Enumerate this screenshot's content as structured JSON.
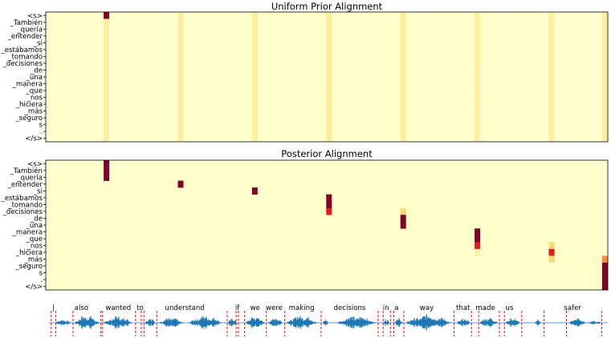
{
  "tokens": [
    "<s>",
    "_También",
    "_quería",
    "_entender",
    "_si",
    "_estábamos",
    "_tomando",
    "_decisiones",
    "_de",
    "_una",
    "_manera",
    "_que",
    "_nos",
    "_hiciera",
    "_más",
    "_seguro",
    "s",
    ".",
    "</s>"
  ],
  "colors": {
    "background": "#ffffcc",
    "light": "#ffeda0",
    "mid": "#fed976",
    "orange": "#fd8d3c",
    "red": "#e31a1c",
    "dark": "#800026",
    "waveform": "#1f77b4",
    "boundary": "#ff0000"
  },
  "chart_data": [
    {
      "type": "heatmap",
      "title": "Uniform Prior Alignment",
      "y_tick_labels": [
        "<s>",
        "_También",
        "_quería",
        "_entender",
        "_si",
        "_estábamos",
        "_tomando",
        "_decisiones",
        "_de",
        "_una",
        "_manera",
        "_que",
        "_nos",
        "_hiciera",
        "_más",
        "_seguro",
        "s",
        ".",
        "</s>"
      ],
      "x_range": [
        0,
        1
      ],
      "columns": [
        {
          "x": 0.108,
          "row_values": [
            [
              0,
              "dark"
            ],
            [
              1,
              "light"
            ],
            [
              2,
              "light"
            ],
            [
              3,
              "light"
            ],
            [
              4,
              "light"
            ],
            [
              5,
              "light"
            ],
            [
              6,
              "light"
            ],
            [
              7,
              "light"
            ],
            [
              8,
              "light"
            ],
            [
              9,
              "light"
            ],
            [
              10,
              "light"
            ],
            [
              11,
              "light"
            ],
            [
              12,
              "light"
            ],
            [
              13,
              "light"
            ],
            [
              14,
              "light"
            ],
            [
              15,
              "light"
            ],
            [
              16,
              "light"
            ],
            [
              17,
              "light"
            ],
            [
              18,
              "light"
            ]
          ]
        },
        {
          "x": 0.24,
          "row_values": [
            [
              0,
              "light"
            ],
            [
              1,
              "light"
            ],
            [
              2,
              "light"
            ],
            [
              3,
              "light"
            ],
            [
              4,
              "light"
            ],
            [
              5,
              "light"
            ],
            [
              6,
              "light"
            ],
            [
              7,
              "light"
            ],
            [
              8,
              "light"
            ],
            [
              9,
              "light"
            ],
            [
              10,
              "light"
            ],
            [
              11,
              "light"
            ],
            [
              12,
              "light"
            ],
            [
              13,
              "light"
            ],
            [
              14,
              "light"
            ],
            [
              15,
              "light"
            ],
            [
              16,
              "light"
            ],
            [
              17,
              "light"
            ],
            [
              18,
              "light"
            ]
          ]
        },
        {
          "x": 0.372,
          "row_values": [
            [
              0,
              "light"
            ],
            [
              1,
              "light"
            ],
            [
              2,
              "light"
            ],
            [
              3,
              "light"
            ],
            [
              4,
              "light"
            ],
            [
              5,
              "light"
            ],
            [
              6,
              "light"
            ],
            [
              7,
              "light"
            ],
            [
              8,
              "light"
            ],
            [
              9,
              "light"
            ],
            [
              10,
              "light"
            ],
            [
              11,
              "light"
            ],
            [
              12,
              "light"
            ],
            [
              13,
              "light"
            ],
            [
              14,
              "light"
            ],
            [
              15,
              "light"
            ],
            [
              16,
              "light"
            ],
            [
              17,
              "light"
            ],
            [
              18,
              "light"
            ]
          ]
        },
        {
          "x": 0.504,
          "row_values": [
            [
              0,
              "light"
            ],
            [
              1,
              "light"
            ],
            [
              2,
              "light"
            ],
            [
              3,
              "light"
            ],
            [
              4,
              "light"
            ],
            [
              5,
              "light"
            ],
            [
              6,
              "light"
            ],
            [
              7,
              "light"
            ],
            [
              8,
              "light"
            ],
            [
              9,
              "light"
            ],
            [
              10,
              "light"
            ],
            [
              11,
              "light"
            ],
            [
              12,
              "light"
            ],
            [
              13,
              "light"
            ],
            [
              14,
              "light"
            ],
            [
              15,
              "light"
            ],
            [
              16,
              "light"
            ],
            [
              17,
              "light"
            ],
            [
              18,
              "light"
            ]
          ]
        },
        {
          "x": 0.636,
          "row_values": [
            [
              0,
              "light"
            ],
            [
              1,
              "light"
            ],
            [
              2,
              "light"
            ],
            [
              3,
              "light"
            ],
            [
              4,
              "light"
            ],
            [
              5,
              "light"
            ],
            [
              6,
              "light"
            ],
            [
              7,
              "light"
            ],
            [
              8,
              "light"
            ],
            [
              9,
              "light"
            ],
            [
              10,
              "light"
            ],
            [
              11,
              "light"
            ],
            [
              12,
              "light"
            ],
            [
              13,
              "light"
            ],
            [
              14,
              "light"
            ],
            [
              15,
              "light"
            ],
            [
              16,
              "light"
            ],
            [
              17,
              "light"
            ],
            [
              18,
              "light"
            ]
          ]
        },
        {
          "x": 0.768,
          "row_values": [
            [
              0,
              "light"
            ],
            [
              1,
              "light"
            ],
            [
              2,
              "light"
            ],
            [
              3,
              "light"
            ],
            [
              4,
              "light"
            ],
            [
              5,
              "light"
            ],
            [
              6,
              "light"
            ],
            [
              7,
              "light"
            ],
            [
              8,
              "light"
            ],
            [
              9,
              "light"
            ],
            [
              10,
              "light"
            ],
            [
              11,
              "light"
            ],
            [
              12,
              "light"
            ],
            [
              13,
              "light"
            ],
            [
              14,
              "light"
            ],
            [
              15,
              "light"
            ],
            [
              16,
              "light"
            ],
            [
              17,
              "light"
            ],
            [
              18,
              "light"
            ]
          ]
        },
        {
          "x": 0.9,
          "row_values": [
            [
              0,
              "light"
            ],
            [
              1,
              "light"
            ],
            [
              2,
              "light"
            ],
            [
              3,
              "light"
            ],
            [
              4,
              "light"
            ],
            [
              5,
              "light"
            ],
            [
              6,
              "light"
            ],
            [
              7,
              "light"
            ],
            [
              8,
              "light"
            ],
            [
              9,
              "light"
            ],
            [
              10,
              "light"
            ],
            [
              11,
              "light"
            ],
            [
              12,
              "light"
            ],
            [
              13,
              "light"
            ],
            [
              14,
              "light"
            ],
            [
              15,
              "light"
            ],
            [
              16,
              "light"
            ],
            [
              17,
              "light"
            ],
            [
              18,
              "light"
            ]
          ]
        },
        {
          "x": 0.996,
          "row_values": [
            [
              0,
              "light"
            ],
            [
              1,
              "light"
            ],
            [
              2,
              "light"
            ],
            [
              3,
              "light"
            ],
            [
              4,
              "light"
            ],
            [
              5,
              "light"
            ],
            [
              6,
              "light"
            ],
            [
              7,
              "light"
            ],
            [
              8,
              "light"
            ],
            [
              9,
              "light"
            ],
            [
              10,
              "light"
            ],
            [
              11,
              "light"
            ],
            [
              12,
              "light"
            ],
            [
              13,
              "light"
            ],
            [
              14,
              "light"
            ],
            [
              15,
              "light"
            ],
            [
              16,
              "light"
            ],
            [
              17,
              "light"
            ],
            [
              18,
              "light"
            ]
          ]
        }
      ]
    },
    {
      "type": "heatmap",
      "title": "Posterior Alignment",
      "y_tick_labels": [
        "<s>",
        "_También",
        "_quería",
        "_entender",
        "_si",
        "_estábamos",
        "_tomando",
        "_decisiones",
        "_de",
        "_una",
        "_manera",
        "_que",
        "_nos",
        "_hiciera",
        "_más",
        "_seguro",
        "s",
        ".",
        "</s>"
      ],
      "x_range": [
        0,
        1
      ],
      "columns": [
        {
          "x": 0.108,
          "row_values": [
            [
              0,
              "dark"
            ],
            [
              1,
              "dark"
            ],
            [
              2,
              "dark"
            ]
          ]
        },
        {
          "x": 0.24,
          "row_values": [
            [
              3,
              "dark"
            ]
          ]
        },
        {
          "x": 0.372,
          "row_values": [
            [
              4,
              "dark"
            ]
          ]
        },
        {
          "x": 0.504,
          "row_values": [
            [
              5,
              "dark"
            ],
            [
              6,
              "dark"
            ],
            [
              7,
              "red"
            ]
          ]
        },
        {
          "x": 0.636,
          "row_values": [
            [
              7,
              "mid"
            ],
            [
              8,
              "dark"
            ],
            [
              9,
              "dark"
            ]
          ]
        },
        {
          "x": 0.768,
          "row_values": [
            [
              10,
              "dark"
            ],
            [
              11,
              "dark"
            ],
            [
              12,
              "red"
            ],
            [
              13,
              "light"
            ]
          ]
        },
        {
          "x": 0.9,
          "row_values": [
            [
              12,
              "mid"
            ],
            [
              13,
              "red"
            ],
            [
              14,
              "mid"
            ]
          ]
        },
        {
          "x": 0.996,
          "row_values": [
            [
              14,
              "orange"
            ],
            [
              15,
              "dark"
            ],
            [
              16,
              "dark"
            ],
            [
              17,
              "dark"
            ],
            [
              18,
              "dark"
            ]
          ]
        }
      ]
    },
    {
      "type": "line",
      "subtype": "waveform",
      "words": [
        {
          "text": "|",
          "x": 0.008
        },
        {
          "text": "also",
          "x": 0.058
        },
        {
          "text": "wanted",
          "x": 0.124
        },
        {
          "text": "to",
          "x": 0.163
        },
        {
          "text": "understand",
          "x": 0.243
        },
        {
          "text": "if",
          "x": 0.337
        },
        {
          "text": "we",
          "x": 0.369
        },
        {
          "text": "were",
          "x": 0.403
        },
        {
          "text": "making",
          "x": 0.452
        },
        {
          "text": "decisions",
          "x": 0.538
        },
        {
          "text": "in",
          "x": 0.603
        },
        {
          "text": "a",
          "x": 0.622
        },
        {
          "text": "way",
          "x": 0.676
        },
        {
          "text": "that",
          "x": 0.741
        },
        {
          "text": "made",
          "x": 0.781
        },
        {
          "text": "us",
          "x": 0.824
        },
        {
          "text": "safer",
          "x": 0.937
        }
      ],
      "boundaries": [
        0.004,
        0.012,
        0.043,
        0.093,
        0.096,
        0.155,
        0.165,
        0.17,
        0.193,
        0.319,
        0.335,
        0.339,
        0.35,
        0.389,
        0.422,
        0.487,
        0.589,
        0.598,
        0.611,
        0.617,
        0.635,
        0.725,
        0.756,
        0.769,
        0.806,
        0.815,
        0.846,
        0.886,
        0.926,
        0.989
      ],
      "bursts": [
        {
          "start": 0.01,
          "end": 0.04,
          "amp": 0.35
        },
        {
          "start": 0.045,
          "end": 0.09,
          "amp": 0.8
        },
        {
          "start": 0.098,
          "end": 0.15,
          "amp": 0.7
        },
        {
          "start": 0.172,
          "end": 0.19,
          "amp": 0.6
        },
        {
          "start": 0.196,
          "end": 0.24,
          "amp": 0.55
        },
        {
          "start": 0.25,
          "end": 0.31,
          "amp": 0.75
        },
        {
          "start": 0.32,
          "end": 0.336,
          "amp": 0.5
        },
        {
          "start": 0.352,
          "end": 0.386,
          "amp": 0.7
        },
        {
          "start": 0.392,
          "end": 0.418,
          "amp": 0.6
        },
        {
          "start": 0.424,
          "end": 0.48,
          "amp": 0.8
        },
        {
          "start": 0.49,
          "end": 0.5,
          "amp": 0.4
        },
        {
          "start": 0.515,
          "end": 0.585,
          "amp": 0.75
        },
        {
          "start": 0.598,
          "end": 0.61,
          "amp": 0.45
        },
        {
          "start": 0.618,
          "end": 0.633,
          "amp": 0.5
        },
        {
          "start": 0.638,
          "end": 0.72,
          "amp": 0.85
        },
        {
          "start": 0.73,
          "end": 0.755,
          "amp": 0.45
        },
        {
          "start": 0.77,
          "end": 0.803,
          "amp": 0.6
        },
        {
          "start": 0.817,
          "end": 0.843,
          "amp": 0.55
        },
        {
          "start": 0.87,
          "end": 0.88,
          "amp": 0.35
        },
        {
          "start": 0.93,
          "end": 0.96,
          "amp": 0.5
        },
        {
          "start": 0.962,
          "end": 0.99,
          "amp": 0.2
        }
      ]
    }
  ]
}
